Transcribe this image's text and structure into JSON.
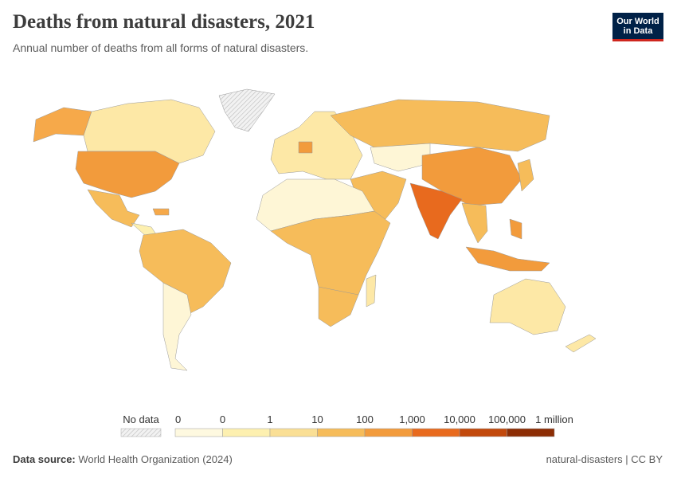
{
  "header": {
    "title": "Deaths from natural disasters, 2021",
    "subtitle": "Annual number of deaths from all forms of natural disasters."
  },
  "logo": {
    "lines": [
      "Our World",
      "in Data"
    ]
  },
  "legend": {
    "no_data": "No data",
    "ticks": [
      "0",
      "0",
      "1",
      "10",
      "100",
      "1,000",
      "10,000",
      "100,000",
      "1 million"
    ],
    "colors": [
      "#fef9e0",
      "#fdf0b0",
      "#fadf95",
      "#f6bc5a",
      "#f29b3c",
      "#e86a1e",
      "#c2490c",
      "#8c2d04"
    ]
  },
  "footer": {
    "source_label": "Data source:",
    "source": "World Health Organization (2024)",
    "slug": "natural-disasters | CC BY"
  }
}
